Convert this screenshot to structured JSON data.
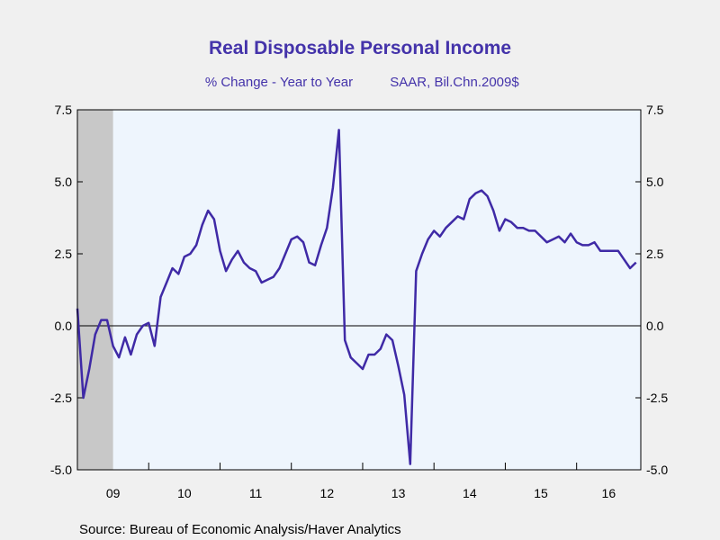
{
  "chart_data": {
    "type": "line",
    "title": "Real Disposable Personal Income",
    "subtitle_left": "% Change - Year to Year",
    "subtitle_right": "SAAR, Bil.Chn.2009$",
    "source": "Source:  Bureau of Economic Analysis/Haver Analytics",
    "ylim": [
      -5.0,
      7.5
    ],
    "yticks": [
      7.5,
      5.0,
      2.5,
      0.0,
      -2.5,
      -5.0
    ],
    "ytick_labels": [
      "7.5",
      "5.0",
      "2.5",
      "0.0",
      "-2.5",
      "-5.0"
    ],
    "xlim": [
      2009.0,
      2016.9
    ],
    "xtick_labels": [
      "09",
      "10",
      "11",
      "12",
      "13",
      "14",
      "15",
      "16"
    ],
    "x_year_starts": [
      2009,
      2010,
      2011,
      2012,
      2013,
      2014,
      2015,
      2016
    ],
    "recession_shading": [
      2009.0,
      2009.5
    ],
    "zero_line": true,
    "grid": false,
    "colors": {
      "line": "#3f2aa6",
      "plot_background": "#eef5fd",
      "recession": "#c8c8c8",
      "title": "#4433aa"
    },
    "series": [
      {
        "x": [
          2009.0,
          2009.083,
          2009.167,
          2009.25,
          2009.333,
          2009.417,
          2009.5,
          2009.583,
          2009.667,
          2009.75,
          2009.833,
          2009.917,
          2010.0,
          2010.083,
          2010.167,
          2010.25,
          2010.333,
          2010.417,
          2010.5,
          2010.583,
          2010.667,
          2010.75,
          2010.833,
          2010.917,
          2011.0,
          2011.083,
          2011.167,
          2011.25,
          2011.333,
          2011.417,
          2011.5,
          2011.583,
          2011.667,
          2011.75,
          2011.833,
          2011.917,
          2012.0,
          2012.083,
          2012.167,
          2012.25,
          2012.333,
          2012.417,
          2012.5,
          2012.583,
          2012.667,
          2012.75,
          2012.833,
          2012.917,
          2013.0,
          2013.083,
          2013.167,
          2013.25,
          2013.333,
          2013.417,
          2013.5,
          2013.583,
          2013.667,
          2013.75,
          2013.833,
          2013.917,
          2014.0,
          2014.083,
          2014.167,
          2014.25,
          2014.333,
          2014.417,
          2014.5,
          2014.583,
          2014.667,
          2014.75,
          2014.833,
          2014.917,
          2015.0,
          2015.083,
          2015.167,
          2015.25,
          2015.333,
          2015.417,
          2015.5,
          2015.583,
          2015.667,
          2015.75,
          2015.833,
          2015.917,
          2016.0,
          2016.083,
          2016.167,
          2016.25,
          2016.333,
          2016.417,
          2016.5,
          2016.583,
          2016.667,
          2016.75,
          2016.833
        ],
        "y": [
          0.6,
          -2.5,
          -1.5,
          -0.3,
          0.2,
          0.2,
          -0.7,
          -1.1,
          -0.4,
          -1.0,
          -0.3,
          0.0,
          0.1,
          -0.7,
          1.0,
          1.5,
          2.0,
          1.8,
          2.4,
          2.5,
          2.8,
          3.5,
          4.0,
          3.7,
          2.6,
          1.9,
          2.3,
          2.6,
          2.2,
          2.0,
          1.9,
          1.5,
          1.6,
          1.7,
          2.0,
          2.5,
          3.0,
          3.1,
          2.9,
          2.2,
          2.1,
          2.8,
          3.4,
          4.8,
          6.8,
          -0.5,
          -1.1,
          -1.3,
          -1.5,
          -1.0,
          -1.0,
          -0.8,
          -0.3,
          -0.5,
          -1.4,
          -2.4,
          -4.8,
          1.9,
          2.5,
          3.0,
          3.3,
          3.1,
          3.4,
          3.6,
          3.8,
          3.7,
          4.4,
          4.6,
          4.7,
          4.5,
          4.0,
          3.3,
          3.7,
          3.6,
          3.4,
          3.4,
          3.3,
          3.3,
          3.1,
          2.9,
          3.0,
          3.1,
          2.9,
          3.2,
          2.9,
          2.8,
          2.8,
          2.9,
          2.6,
          2.6,
          2.6,
          2.6,
          2.3,
          2.0,
          2.2
        ]
      }
    ]
  }
}
